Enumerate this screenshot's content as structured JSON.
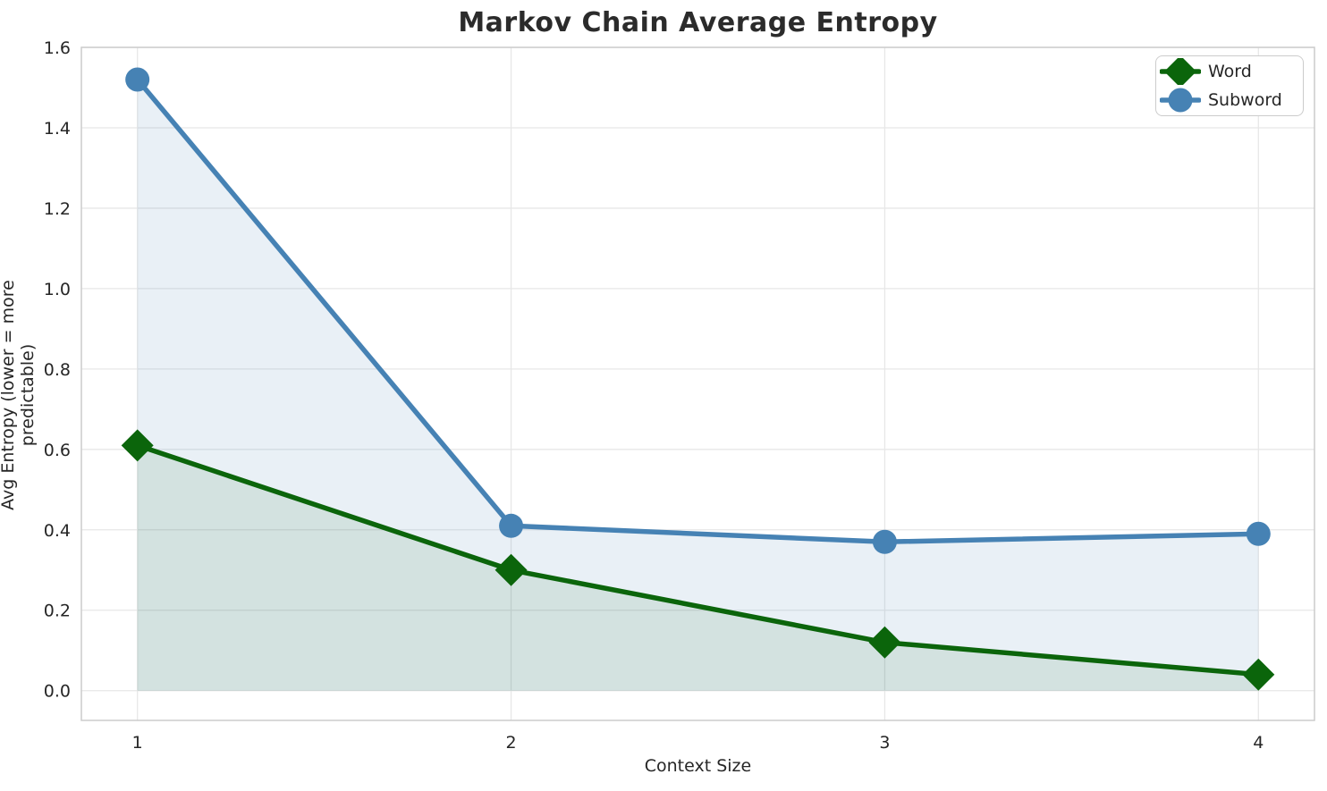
{
  "chart_data": {
    "type": "line",
    "title": "Markov Chain Average Entropy",
    "xlabel": "Context Size",
    "ylabel": "Avg Entropy (lower = more predictable)",
    "x": [
      1,
      2,
      3,
      4
    ],
    "xtick_labels": [
      "1",
      "2",
      "3",
      "4"
    ],
    "yticks": [
      0.0,
      0.2,
      0.4,
      0.6,
      0.8,
      1.0,
      1.2,
      1.4,
      1.6
    ],
    "ytick_labels": [
      "0.0",
      "0.2",
      "0.4",
      "0.6",
      "0.8",
      "1.0",
      "1.2",
      "1.4",
      "1.6"
    ],
    "xlim": [
      0.85,
      4.15
    ],
    "ylim": [
      -0.074,
      1.6
    ],
    "grid": true,
    "legend_position": "upper right",
    "series": [
      {
        "name": "Word",
        "values": [
          0.61,
          0.3,
          0.12,
          0.04
        ],
        "color": "#0b650b",
        "marker": "diamond",
        "fill": true,
        "fill_opacity": 0.1
      },
      {
        "name": "Subword",
        "values": [
          1.52,
          0.41,
          0.37,
          0.39
        ],
        "color": "#4682b4",
        "marker": "circle",
        "fill": true,
        "fill_opacity": 0.12
      }
    ],
    "colors": {
      "grid": "#e7e7e7",
      "spine": "#cccccc",
      "tick_text": "#262626",
      "title_text": "#2b2b2b"
    }
  }
}
